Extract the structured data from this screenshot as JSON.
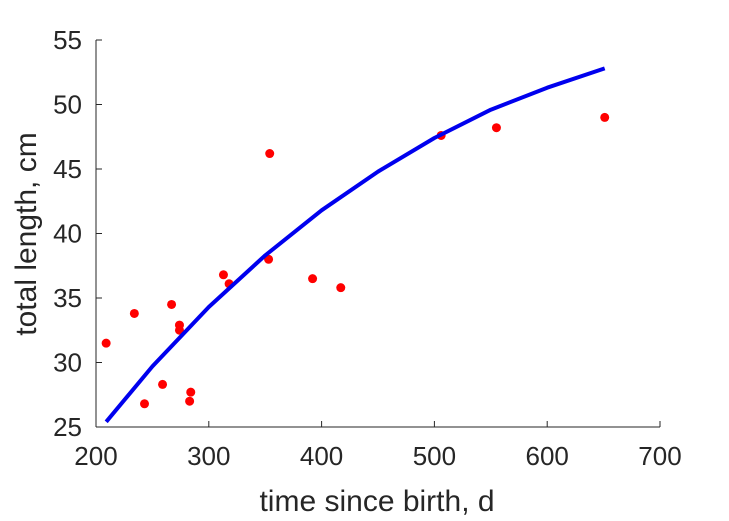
{
  "chart_data": {
    "type": "scatter",
    "title": "",
    "xlabel": "time since birth, d",
    "ylabel": "total length, cm",
    "xlim": [
      200,
      700
    ],
    "ylim": [
      25,
      55
    ],
    "xticks": [
      200,
      300,
      400,
      500,
      600,
      700
    ],
    "yticks": [
      25,
      30,
      35,
      40,
      45,
      50,
      55
    ],
    "grid": false,
    "legend": "none",
    "series": [
      {
        "kind": "points",
        "color": "#ff0000",
        "points": [
          [
            209,
            31.5
          ],
          [
            234,
            33.8
          ],
          [
            243,
            26.8
          ],
          [
            259,
            28.3
          ],
          [
            267,
            34.5
          ],
          [
            274,
            32.9
          ],
          [
            274,
            32.5
          ],
          [
            283,
            27.0
          ],
          [
            284,
            27.7
          ],
          [
            313,
            36.8
          ],
          [
            318,
            36.1
          ],
          [
            353,
            38.0
          ],
          [
            354,
            46.2
          ],
          [
            392,
            36.5
          ],
          [
            417,
            35.8
          ],
          [
            506,
            47.6
          ],
          [
            555,
            48.2
          ],
          [
            651,
            49.0
          ]
        ]
      },
      {
        "kind": "line",
        "color": "#0000ee",
        "points": [
          [
            209,
            25.4
          ],
          [
            250,
            29.7
          ],
          [
            300,
            34.3
          ],
          [
            350,
            38.3
          ],
          [
            400,
            41.8
          ],
          [
            450,
            44.8
          ],
          [
            500,
            47.4
          ],
          [
            550,
            49.6
          ],
          [
            600,
            51.3
          ],
          [
            651,
            52.8
          ]
        ]
      }
    ]
  }
}
